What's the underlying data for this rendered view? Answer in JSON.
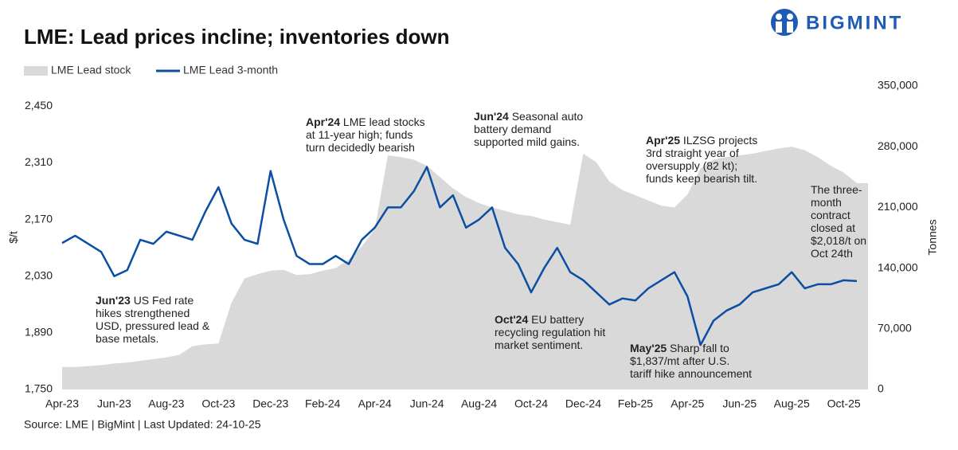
{
  "chart_data": {
    "type": "line-area",
    "title": "LME: Lead prices incline; inventories down",
    "brand": "BIGMINT",
    "source": "Source: LME | BigMint | Last Updated: 24-10-25",
    "ylabel": "$/t",
    "y2label": "Tonnes",
    "categories": [
      "Apr-23",
      null,
      null,
      null,
      "Jun-23",
      null,
      null,
      null,
      "Aug-23",
      null,
      null,
      null,
      "Oct-23",
      null,
      null,
      null,
      "Dec-23",
      null,
      null,
      null,
      "Feb-24",
      null,
      null,
      null,
      "Apr-24",
      null,
      null,
      null,
      "Jun-24",
      null,
      null,
      null,
      "Aug-24",
      null,
      null,
      null,
      "Oct-24",
      null,
      null,
      null,
      "Dec-24",
      null,
      null,
      null,
      "Feb-25",
      null,
      null,
      null,
      "Apr-25",
      null,
      null,
      null,
      "Jun-25",
      null,
      null,
      null,
      "Aug-25",
      null,
      null,
      null,
      "Oct-25",
      null
    ],
    "series": [
      {
        "name": "LME Lead stock",
        "color": "#d9d9d9",
        "kind": "area",
        "axis": "y2",
        "values": [
          26000,
          26000,
          27000,
          28000,
          30000,
          31000,
          33000,
          35000,
          37000,
          40000,
          50000,
          52000,
          53000,
          100000,
          128000,
          133000,
          137000,
          138000,
          132000,
          133000,
          137000,
          140000,
          150000,
          165000,
          185000,
          270000,
          268000,
          265000,
          258000,
          245000,
          232000,
          222000,
          215000,
          210000,
          206000,
          202000,
          200000,
          196000,
          193000,
          190000,
          272000,
          262000,
          240000,
          230000,
          224000,
          218000,
          212000,
          210000,
          225000,
          255000,
          265000,
          268000,
          270000,
          272000,
          275000,
          278000,
          280000,
          276000,
          268000,
          258000,
          250000,
          238000
        ]
      },
      {
        "name": "LME Lead 3-month",
        "color": "#0b4ea2",
        "kind": "line",
        "values": [
          2112,
          2130,
          2110,
          2090,
          2030,
          2045,
          2120,
          2110,
          2140,
          2130,
          2120,
          2190,
          2250,
          2160,
          2120,
          2110,
          2290,
          2170,
          2080,
          2060,
          2060,
          2080,
          2060,
          2120,
          2150,
          2200,
          2200,
          2240,
          2300,
          2200,
          2230,
          2150,
          2170,
          2200,
          2100,
          2060,
          1990,
          2050,
          2100,
          2040,
          2020,
          1990,
          1960,
          1975,
          1970,
          2000,
          2020,
          2040,
          1980,
          1860,
          1920,
          1945,
          1960,
          1990,
          2000,
          2010,
          2040,
          2000,
          2010,
          2010,
          2020,
          2018
        ]
      }
    ],
    "ylim": [
      1750,
      2500
    ],
    "yticks": [
      {
        "value": 1750,
        "label": "1,750"
      },
      {
        "value": 1890,
        "label": "1,890"
      },
      {
        "value": 2030,
        "label": "2,030"
      },
      {
        "value": 2170,
        "label": "2,170"
      },
      {
        "value": 2310,
        "label": "2,310"
      },
      {
        "value": 2450,
        "label": "2,450"
      }
    ],
    "y2lim": [
      0,
      350000
    ],
    "y2ticks": [
      0,
      {
        "value": 70000,
        "label": "70,000"
      },
      {
        "value": 140000,
        "label": "140,000"
      },
      {
        "value": 210000,
        "label": "210,000"
      },
      {
        "value": 280000,
        "label": "280,000"
      },
      {
        "value": 350000,
        "label": "350,000"
      }
    ],
    "annotations": [
      {
        "label": "Jun'23",
        "text": [
          "US Fed rate",
          "hikes strengthened",
          "USD, pressured lead &",
          "base metals."
        ]
      },
      {
        "label": "Apr'24",
        "text": [
          "LME lead stocks",
          "at 11-year high; funds",
          "turn decidedly bearish"
        ]
      },
      {
        "label": "Jun'24",
        "text": [
          "Seasonal auto",
          "battery demand",
          "supported mild gains."
        ]
      },
      {
        "label": "Oct'24",
        "text": [
          "EU battery",
          "recycling regulation hit",
          "market sentiment."
        ]
      },
      {
        "label": "Apr'25",
        "text": [
          "ILZSG projects",
          "3rd straight year of",
          "oversupply (82 kt);",
          "funds keep bearish tilt."
        ]
      },
      {
        "label": "May'25",
        "text": [
          "Sharp fall to",
          "$1,837/mt after U.S.",
          "tariff hike announcement"
        ]
      },
      {
        "text": [
          "The three-",
          "month",
          "contract",
          "closed at",
          "$2,018/t on",
          "Oct 24th"
        ]
      }
    ]
  }
}
